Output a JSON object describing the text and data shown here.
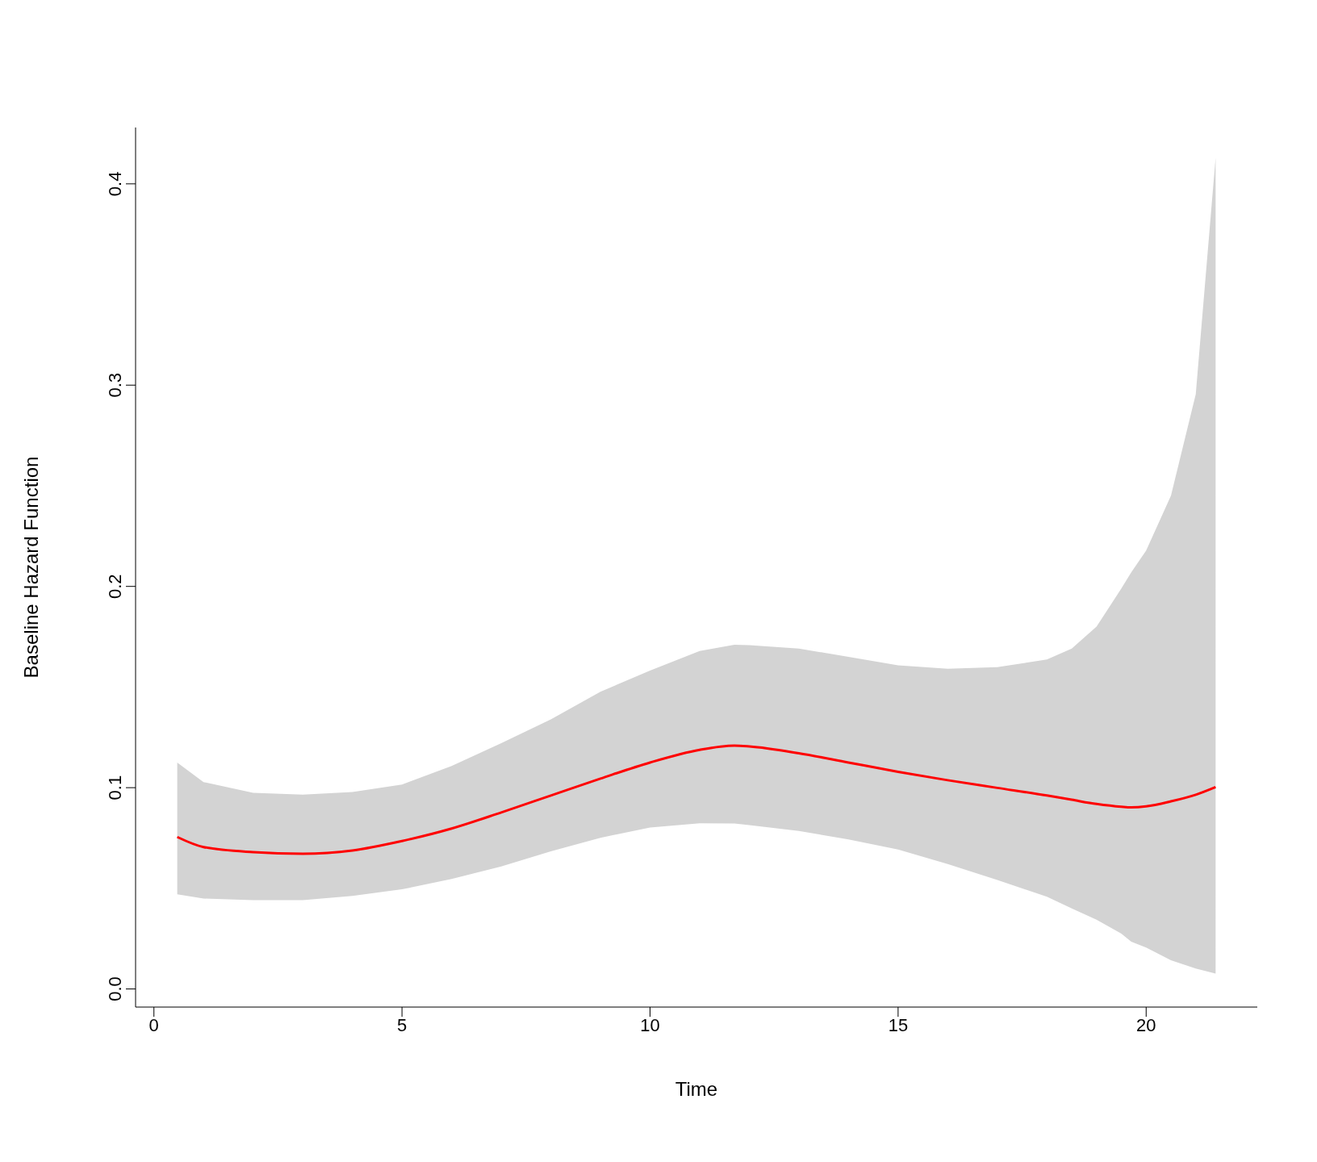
{
  "chart_data": {
    "type": "line",
    "xlabel": "Time",
    "ylabel": "Baseline Hazard Function",
    "x": [
      0.47,
      1,
      2,
      3,
      4,
      5,
      6,
      7,
      8,
      9,
      10,
      11,
      11.7,
      12,
      13,
      14,
      15,
      16,
      17,
      18,
      18.5,
      19,
      19.5,
      19.7,
      20,
      20.5,
      21,
      21.4
    ],
    "series": [
      {
        "color": "#ff0000",
        "values": [
          0.0755,
          0.0705,
          0.068,
          0.0672,
          0.0688,
          0.0735,
          0.0797,
          0.0877,
          0.0961,
          0.1045,
          0.1125,
          0.1188,
          0.1209,
          0.1205,
          0.1171,
          0.1125,
          0.1079,
          0.1037,
          0.0999,
          0.0961,
          0.094,
          0.0919,
          0.0905,
          0.0902,
          0.0907,
          0.0932,
          0.0965,
          0.1003
        ],
        "lower": [
          0.047,
          0.0449,
          0.0441,
          0.0441,
          0.0462,
          0.0495,
          0.0546,
          0.0609,
          0.0684,
          0.0751,
          0.0802,
          0.0823,
          0.0822,
          0.0814,
          0.0785,
          0.0743,
          0.0693,
          0.0621,
          0.0541,
          0.0458,
          0.04,
          0.0344,
          0.0275,
          0.0235,
          0.0206,
          0.0143,
          0.0101,
          0.0076
        ],
        "upper": [
          0.1125,
          0.1028,
          0.0974,
          0.0965,
          0.0978,
          0.1016,
          0.1108,
          0.1221,
          0.1339,
          0.1477,
          0.1582,
          0.1679,
          0.171,
          0.1708,
          0.1691,
          0.165,
          0.1608,
          0.1591,
          0.1599,
          0.1637,
          0.1691,
          0.18,
          0.199,
          0.207,
          0.2178,
          0.2451,
          0.2955,
          0.413
        ]
      }
    ],
    "xlim": [
      -0.37,
      22.24
    ],
    "ylim": [
      -0.009,
      0.428
    ],
    "xticks": [
      0,
      5,
      10,
      15,
      20
    ],
    "yticks": [
      {
        "value": 0,
        "label": "0.0"
      },
      0.1,
      0.2,
      0.3,
      0.4
    ]
  }
}
